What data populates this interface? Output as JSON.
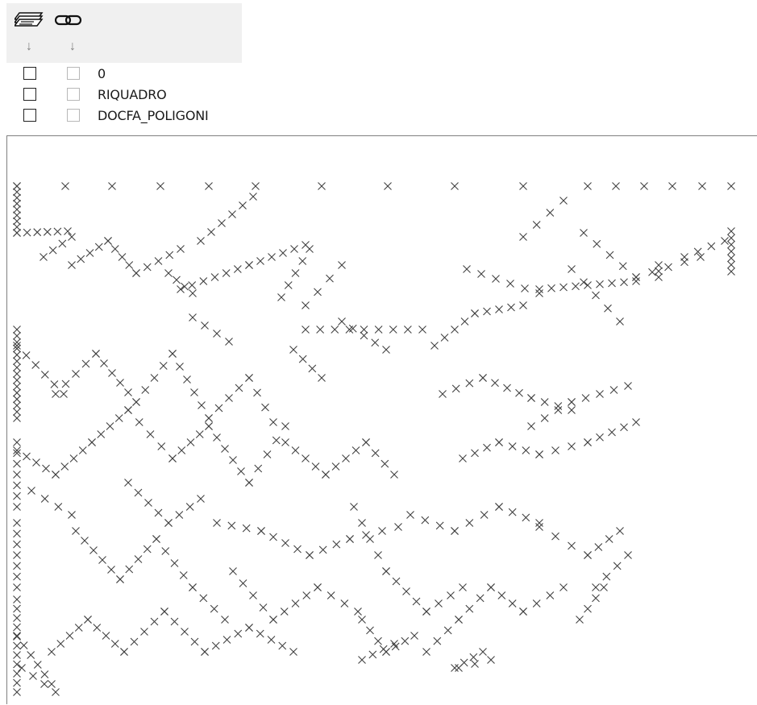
{
  "layer_panel": {
    "columns": [
      {
        "name": "layer-visibility",
        "icon": "layer-stack-icon"
      },
      {
        "name": "layer-link",
        "icon": "chain-link-icon"
      }
    ],
    "sort_arrow_glyph": "↓",
    "layers": [
      {
        "name": "0",
        "visible": false,
        "locked": false
      },
      {
        "name": "RIQUADRO",
        "visible": false,
        "locked": false
      },
      {
        "name": "DOCFA_POLIGONI",
        "visible": false,
        "locked": false
      }
    ]
  },
  "drawing": {
    "marker_icon": "cross-marker-icon",
    "marker_color": "#404040"
  }
}
